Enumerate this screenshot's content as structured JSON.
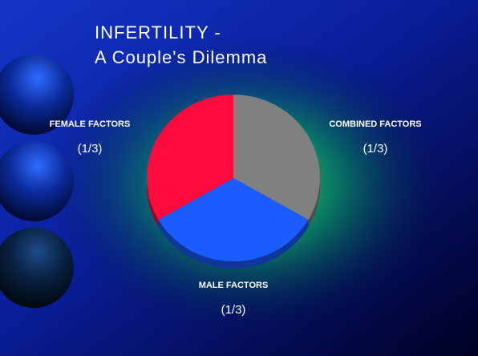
{
  "chart_data": {
    "type": "pie",
    "title": "INFERTILITY -",
    "subtitle": "A Couple's Dilemma",
    "categories": [
      "COMBINED FACTORS",
      "MALE FACTORS",
      "FEMALE FACTORS"
    ],
    "values": [
      0.3333,
      0.3333,
      0.3333
    ],
    "value_labels": [
      "(1/3)",
      "(1/3)",
      "(1/3)"
    ],
    "colors": [
      "#808080",
      "#1a5cff",
      "#ff0a3c"
    ]
  }
}
